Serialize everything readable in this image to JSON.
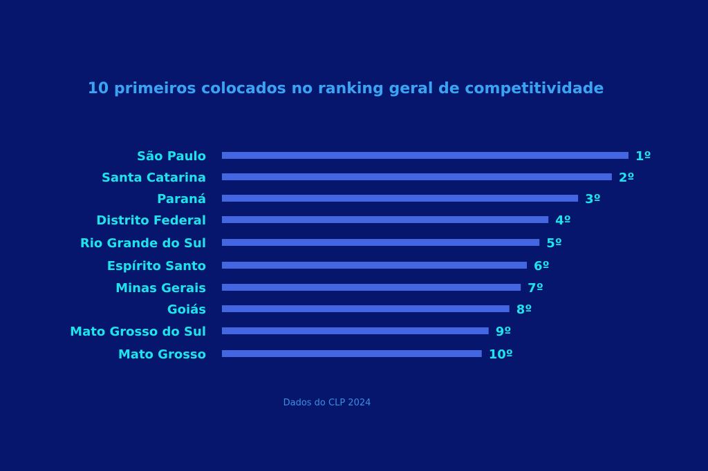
{
  "chart_data": {
    "type": "bar",
    "orientation": "horizontal",
    "title": "10 primeiros colocados no ranking geral de competitividade",
    "source": "Dados do CLP 2024",
    "categories": [
      "São Paulo",
      "Santa Catarina",
      "Paraná",
      "Distrito Federal",
      "Rio Grande do Sul",
      "Espírito Santo",
      "Minas Gerais",
      "Goiás",
      "Mato Grosso do Sul",
      "Mato Grosso"
    ],
    "rank_labels": [
      "1º",
      "2º",
      "3º",
      "4º",
      "5º",
      "6º",
      "7º",
      "8º",
      "9º",
      "10º"
    ],
    "values_relative_percent": [
      100,
      95.9,
      87.6,
      80.3,
      78.1,
      75.0,
      73.5,
      70.7,
      65.6,
      63.9
    ],
    "axis_visible": false,
    "grid": false,
    "colors": {
      "background": "#06166d",
      "bar": "#4466e0",
      "category_label": "#1ee3ea",
      "rank_label": "#1ee3ea",
      "title": "#3ba4f2",
      "source": "#3b8fe0"
    }
  }
}
